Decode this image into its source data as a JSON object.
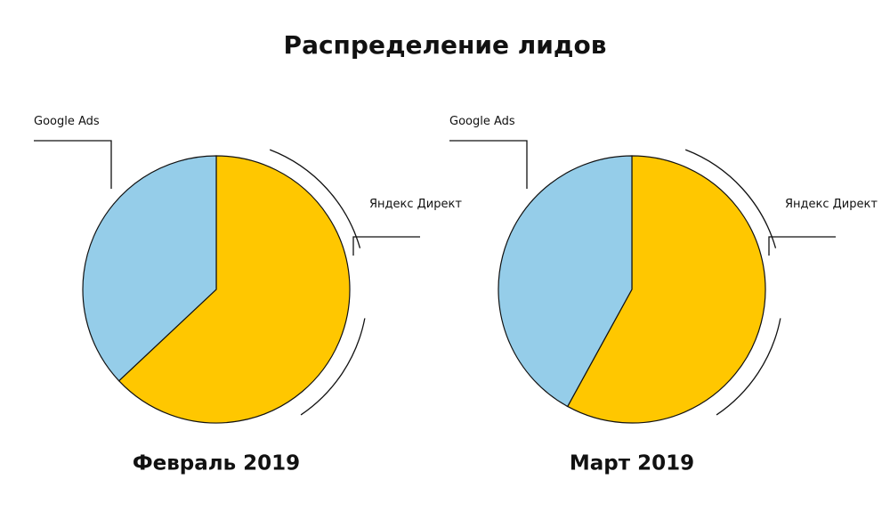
{
  "title": "Распределение лидов",
  "chart_data": [
    {
      "type": "pie",
      "title": "Февраль 2019",
      "categories": [
        "Яндекс Директ",
        "Google Ads"
      ],
      "values": [
        63,
        37
      ],
      "colors": [
        "#ffc700",
        "#95cde9"
      ]
    },
    {
      "type": "pie",
      "title": "Март 2019",
      "categories": [
        "Яндекс Директ",
        "Google Ads"
      ],
      "values": [
        58,
        42
      ],
      "colors": [
        "#ffc700",
        "#95cde9"
      ]
    }
  ]
}
